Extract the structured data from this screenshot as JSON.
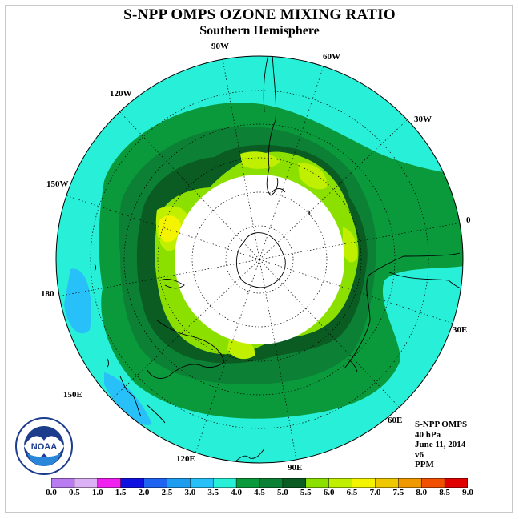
{
  "header": {
    "title": "S-NPP OMPS OZONE MIXING RATIO",
    "subtitle": "Southern Hemisphere"
  },
  "longitude_labels": [
    {
      "text": "90W",
      "key": "90w"
    },
    {
      "text": "60W",
      "key": "60w"
    },
    {
      "text": "120W",
      "key": "120w"
    },
    {
      "text": "30W",
      "key": "30w"
    },
    {
      "text": "150W",
      "key": "150w"
    },
    {
      "text": "0",
      "key": "0"
    },
    {
      "text": "180",
      "key": "180"
    },
    {
      "text": "30E",
      "key": "30e"
    },
    {
      "text": "150E",
      "key": "150e"
    },
    {
      "text": "60E",
      "key": "60e"
    },
    {
      "text": "120E",
      "key": "120e"
    },
    {
      "text": "90E",
      "key": "90e"
    }
  ],
  "info": {
    "instrument": "S-NPP OMPS",
    "level": "40 hPa",
    "date": "June 11, 2014",
    "version": "v6",
    "units": "PPM"
  },
  "colorbar": {
    "ticks": [
      "0.0",
      "0.5",
      "1.0",
      "1.5",
      "2.0",
      "2.5",
      "3.0",
      "3.5",
      "4.0",
      "4.5",
      "5.0",
      "5.5",
      "6.0",
      "6.5",
      "7.0",
      "7.5",
      "8.0",
      "8.5",
      "9.0"
    ],
    "colors": [
      "#b97cf0",
      "#dcb0f4",
      "#f020f0",
      "#1010e0",
      "#1e64f0",
      "#1e9cf0",
      "#28c0f8",
      "#28f0d8",
      "#0a9a3c",
      "#0c8034",
      "#0a5c22",
      "#8ce000",
      "#c0f000",
      "#f4f400",
      "#f0c800",
      "#f09800",
      "#f05000",
      "#e00000",
      "#7c5028"
    ]
  },
  "logo": {
    "text": "NOAA",
    "icon": "noaa-logo-icon"
  },
  "map_colors": {
    "level_3_5_4_0": "#28f0d8",
    "level_4_0_4_5": "#0a9a3c",
    "level_4_5_5_0": "#0c8034",
    "level_5_0_5_5": "#0a5c22",
    "level_5_5_6_0": "#8ce000",
    "level_6_0_6_5": "#c0f000",
    "level_6_5_7_0": "#f4f400",
    "level_3_0_3_5": "#28c0f8",
    "no_data": "#ffffff"
  }
}
